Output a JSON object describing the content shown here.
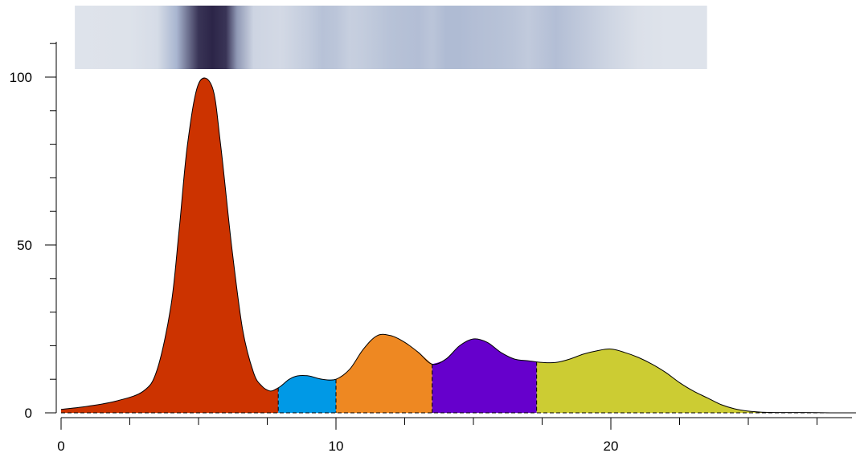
{
  "chart_data": {
    "type": "area",
    "title": "",
    "xlabel": "",
    "ylabel": "",
    "xlim": [
      0,
      29
    ],
    "ylim": [
      0,
      110
    ],
    "x_ticks": [
      0,
      10,
      20
    ],
    "y_ticks": [
      0,
      50,
      100
    ],
    "grid": false,
    "profile": {
      "x": [
        0,
        1,
        2,
        3,
        3.5,
        4,
        4.3,
        4.6,
        5,
        5.5,
        5.8,
        6.2,
        6.6,
        7,
        7.3,
        7.6,
        7.8,
        8,
        8.3,
        8.6,
        9,
        9.5,
        10,
        10.5,
        11,
        11.5,
        12,
        12.5,
        13,
        13.5,
        14,
        14.5,
        15,
        15.5,
        16,
        16.5,
        17,
        17.5,
        18,
        18.5,
        19,
        19.5,
        20,
        20.5,
        21,
        21.5,
        22,
        22.5,
        23,
        23.5,
        24,
        24.5,
        25,
        25.5,
        26,
        27,
        28,
        29
      ],
      "y": [
        1,
        2,
        3.5,
        6.5,
        13,
        32,
        55,
        80,
        98,
        97,
        80,
        50,
        25,
        12,
        8,
        6.5,
        7,
        8,
        10,
        11,
        11,
        10,
        10,
        13,
        19,
        23,
        23,
        21,
        18,
        14.5,
        16,
        20,
        22,
        21,
        18,
        16,
        15.5,
        15,
        15,
        16,
        17.5,
        18.5,
        19,
        18,
        16.5,
        14.5,
        12,
        9,
        6.5,
        4.5,
        2.5,
        1.2,
        0.5,
        0.2,
        0.1,
        0.1,
        0,
        0
      ]
    },
    "series": [
      {
        "range": [
          0,
          7.9
        ],
        "color": "#cc3300"
      },
      {
        "range": [
          7.9,
          10
        ],
        "color": "#0099e6"
      },
      {
        "range": [
          10,
          13.5
        ],
        "color": "#ee8822"
      },
      {
        "range": [
          13.5,
          17.3
        ],
        "color": "#6600cc"
      },
      {
        "range": [
          17.3,
          29
        ],
        "color": "#cccc33"
      }
    ],
    "gel_band": {
      "colors": {
        "background": "#e4e8ee",
        "light": "#c7cfdf",
        "mid": "#a9b6d0",
        "dark": "#2c2548"
      },
      "intensity": {
        "x": [
          0.5,
          2.5,
          3.5,
          4.2,
          5,
          5.5,
          6,
          6.4,
          7,
          8,
          9,
          9.5,
          10,
          10.5,
          11,
          12,
          13,
          13.5,
          14,
          14.5,
          15,
          16,
          16.5,
          17,
          18,
          19,
          20,
          21,
          22,
          23.5
        ],
        "values": [
          0.05,
          0.06,
          0.12,
          0.5,
          0.95,
          1.0,
          0.95,
          0.6,
          0.2,
          0.15,
          0.28,
          0.38,
          0.35,
          0.25,
          0.28,
          0.38,
          0.42,
          0.35,
          0.45,
          0.45,
          0.42,
          0.38,
          0.35,
          0.3,
          0.42,
          0.3,
          0.18,
          0.08,
          0.05,
          0.05
        ]
      }
    }
  }
}
